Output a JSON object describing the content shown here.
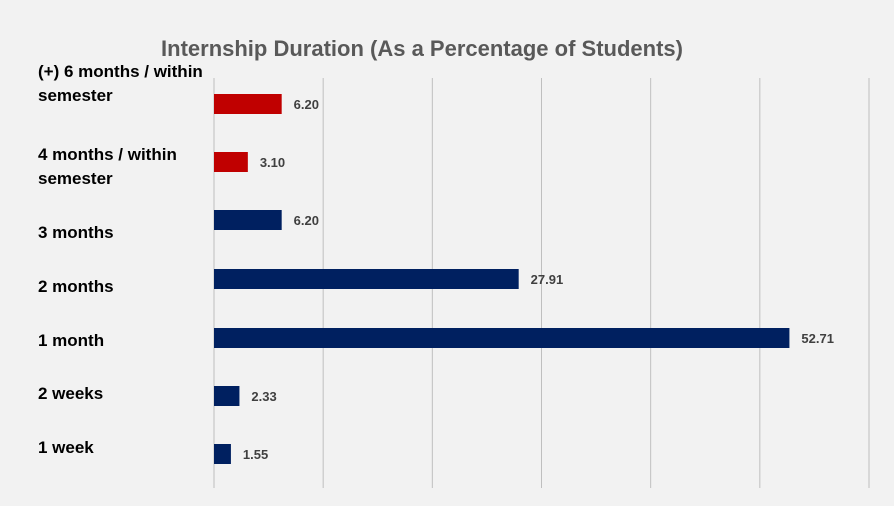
{
  "chart_data": {
    "type": "bar",
    "orientation": "horizontal",
    "title": "Internship Duration (As a Percentage of Students)",
    "categories": [
      "(+) 6 months / within semester",
      "4 months / within semester",
      "3 months",
      "2 months",
      "1 month",
      "2 weeks",
      "1 week"
    ],
    "values": [
      6.2,
      3.1,
      6.2,
      27.91,
      52.71,
      2.33,
      1.55
    ],
    "value_labels": [
      "6.20",
      "3.10",
      "6.20",
      "27.91",
      "52.71",
      "2.33",
      "1.55"
    ],
    "bar_colors": [
      "#c00000",
      "#c00000",
      "#002060",
      "#002060",
      "#002060",
      "#002060",
      "#002060"
    ],
    "xlim": [
      0,
      60
    ],
    "grid": true,
    "legend": "none",
    "xlabel": "",
    "ylabel": ""
  }
}
